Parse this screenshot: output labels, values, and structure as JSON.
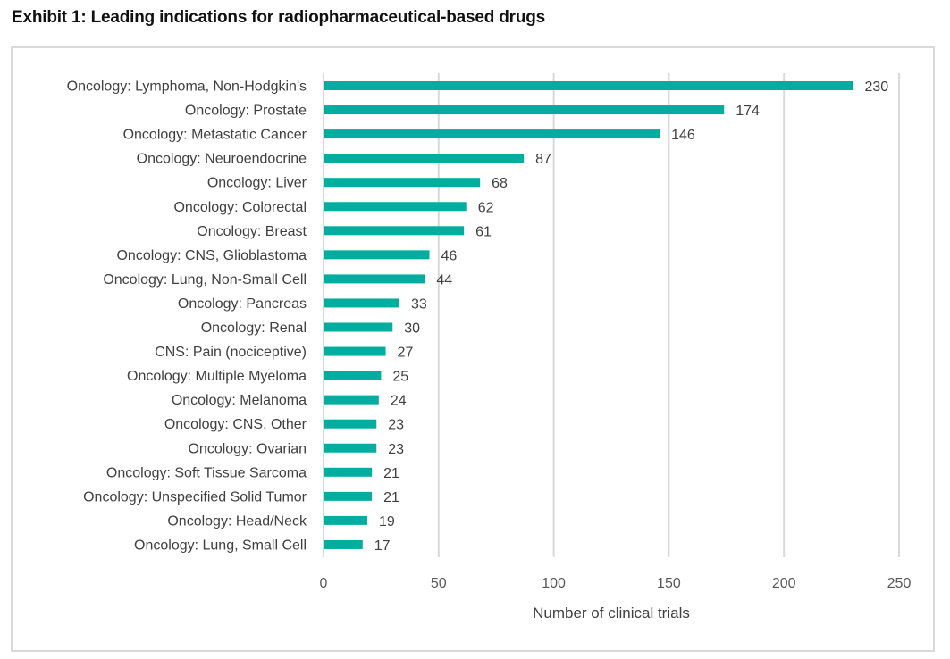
{
  "title": "Exhibit 1: Leading indications for radiopharmaceutical-based drugs",
  "colors": {
    "bar": "#00ad9f",
    "grid": "#d9d9d9",
    "text": "#404040",
    "frame": "#d9d9d9"
  },
  "chart_data": {
    "type": "bar",
    "orientation": "horizontal",
    "title": "Exhibit 1: Leading indications for radiopharmaceutical-based drugs",
    "xlabel": "Number of clinical trials",
    "ylabel": "",
    "xlim": [
      0,
      250
    ],
    "xticks": [
      0,
      50,
      100,
      150,
      200,
      250
    ],
    "grid": true,
    "legend": "none",
    "categories": [
      "Oncology: Lymphoma, Non-Hodgkin's",
      "Oncology: Prostate",
      "Oncology: Metastatic Cancer",
      "Oncology: Neuroendocrine",
      "Oncology: Liver",
      "Oncology: Colorectal",
      "Oncology: Breast",
      "Oncology: CNS, Glioblastoma",
      "Oncology: Lung, Non-Small Cell",
      "Oncology: Pancreas",
      "Oncology: Renal",
      "CNS: Pain (nociceptive)",
      "Oncology: Multiple Myeloma",
      "Oncology: Melanoma",
      "Oncology: CNS, Other",
      "Oncology: Ovarian",
      "Oncology: Soft Tissue Sarcoma",
      "Oncology: Unspecified Solid Tumor",
      "Oncology: Head/Neck",
      "Oncology: Lung, Small Cell"
    ],
    "values": [
      230,
      174,
      146,
      87,
      68,
      62,
      61,
      46,
      44,
      33,
      30,
      27,
      25,
      24,
      23,
      23,
      21,
      21,
      19,
      17
    ]
  }
}
